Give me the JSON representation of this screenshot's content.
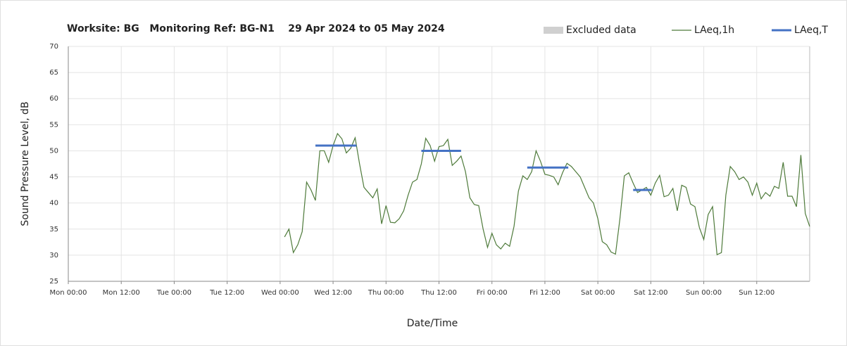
{
  "chart_data": {
    "type": "line",
    "title": "Worksite: BG   Monitoring Ref: BG-N1    29 Apr 2024 to 05 May 2024",
    "xlabel": "Date/Time",
    "ylabel": "Sound Pressure Level, dB",
    "xlim": [
      0,
      168
    ],
    "ylim": [
      25,
      70
    ],
    "yticks": [
      25,
      30,
      35,
      40,
      45,
      50,
      55,
      60,
      65,
      70
    ],
    "xticks": [
      {
        "value": 0,
        "label": "Mon 00:00"
      },
      {
        "value": 12,
        "label": "Mon 12:00"
      },
      {
        "value": 24,
        "label": "Tue 00:00"
      },
      {
        "value": 36,
        "label": "Tue 12:00"
      },
      {
        "value": 48,
        "label": "Wed 00:00"
      },
      {
        "value": 60,
        "label": "Wed 12:00"
      },
      {
        "value": 72,
        "label": "Thu 00:00"
      },
      {
        "value": 84,
        "label": "Thu 12:00"
      },
      {
        "value": 96,
        "label": "Fri 00:00"
      },
      {
        "value": 108,
        "label": "Fri 12:00"
      },
      {
        "value": 120,
        "label": "Sat 00:00"
      },
      {
        "value": 132,
        "label": "Sat 12:00"
      },
      {
        "value": 144,
        "label": "Sun 00:00"
      },
      {
        "value": 156,
        "label": "Sun 12:00"
      }
    ],
    "grid": true,
    "legend": "top-right",
    "series": [
      {
        "name": "Excluded data",
        "color": "#d0d0d0"
      },
      {
        "name": "LAeq,1h",
        "color": "#4e7a3a",
        "x": [
          49,
          50,
          51,
          52,
          53,
          54,
          55,
          56,
          57,
          58,
          59,
          60,
          61,
          62,
          63,
          64,
          65,
          66,
          67,
          68,
          69,
          70,
          71,
          72,
          73,
          74,
          75,
          76,
          77,
          78,
          79,
          80,
          81,
          82,
          83,
          84,
          85,
          86,
          87,
          88,
          89,
          90,
          91,
          92,
          93,
          94,
          95,
          96,
          97,
          98,
          99,
          100,
          101,
          102,
          103,
          104,
          105,
          106,
          107,
          108,
          109,
          110,
          111,
          112,
          113,
          114,
          115,
          116,
          117,
          118,
          119,
          120,
          121,
          122,
          123,
          124,
          125,
          126,
          127,
          128,
          129,
          130,
          131,
          132,
          133,
          134,
          135,
          136,
          137,
          138,
          139,
          140,
          141,
          142,
          143,
          144,
          145,
          146,
          147,
          148,
          149,
          150,
          151,
          152,
          153,
          154,
          155,
          156,
          157,
          158,
          159,
          160,
          161,
          162,
          163,
          164,
          165,
          166,
          167,
          168
        ],
        "values": [
          33.5,
          35,
          30.5,
          32,
          34.5,
          44,
          42.5,
          40.5,
          50,
          50,
          47.8,
          51,
          53.3,
          52.3,
          49.6,
          50.5,
          52.5,
          47.5,
          43,
          42,
          41,
          42.7,
          36,
          39.5,
          36.3,
          36.2,
          37,
          38.5,
          41.5,
          44,
          44.5,
          47.5,
          52.4,
          51,
          48,
          50.8,
          51,
          52.2,
          47.2,
          48,
          49,
          46,
          41,
          39.7,
          39.5,
          35,
          31.5,
          34.2,
          32,
          31.2,
          32.3,
          31.7,
          35.5,
          42.3,
          45.2,
          44.5,
          46,
          50,
          48,
          45.5,
          45.3,
          45,
          43.5,
          45.8,
          47.6,
          47,
          46,
          45,
          43,
          41,
          40,
          37,
          32.6,
          32,
          30.6,
          30.2,
          37,
          45.2,
          45.8,
          43.8,
          42,
          42.5,
          43,
          41.5,
          43.8,
          45.3,
          41.2,
          41.5,
          42.8,
          38.5,
          43.4,
          43,
          39.8,
          39.3,
          35.3,
          33,
          37.8,
          39.3,
          30.1,
          30.5,
          41.5,
          47,
          46,
          44.5,
          45,
          44,
          41.5,
          43.8,
          40.8,
          42,
          41.3,
          43.2,
          42.8,
          47.8,
          41.3,
          41.3,
          39.3,
          49.2,
          38,
          35.5
        ]
      },
      {
        "name": "LAeq,T",
        "color": "#4472c4",
        "segments": [
          {
            "x": [
              56,
              65.3
            ],
            "value": 51
          },
          {
            "x": [
              80,
              89
            ],
            "value": 50
          },
          {
            "x": [
              104,
              113.3
            ],
            "value": 46.8
          },
          {
            "x": [
              128,
              132.2
            ],
            "value": 42.5
          }
        ]
      }
    ]
  }
}
